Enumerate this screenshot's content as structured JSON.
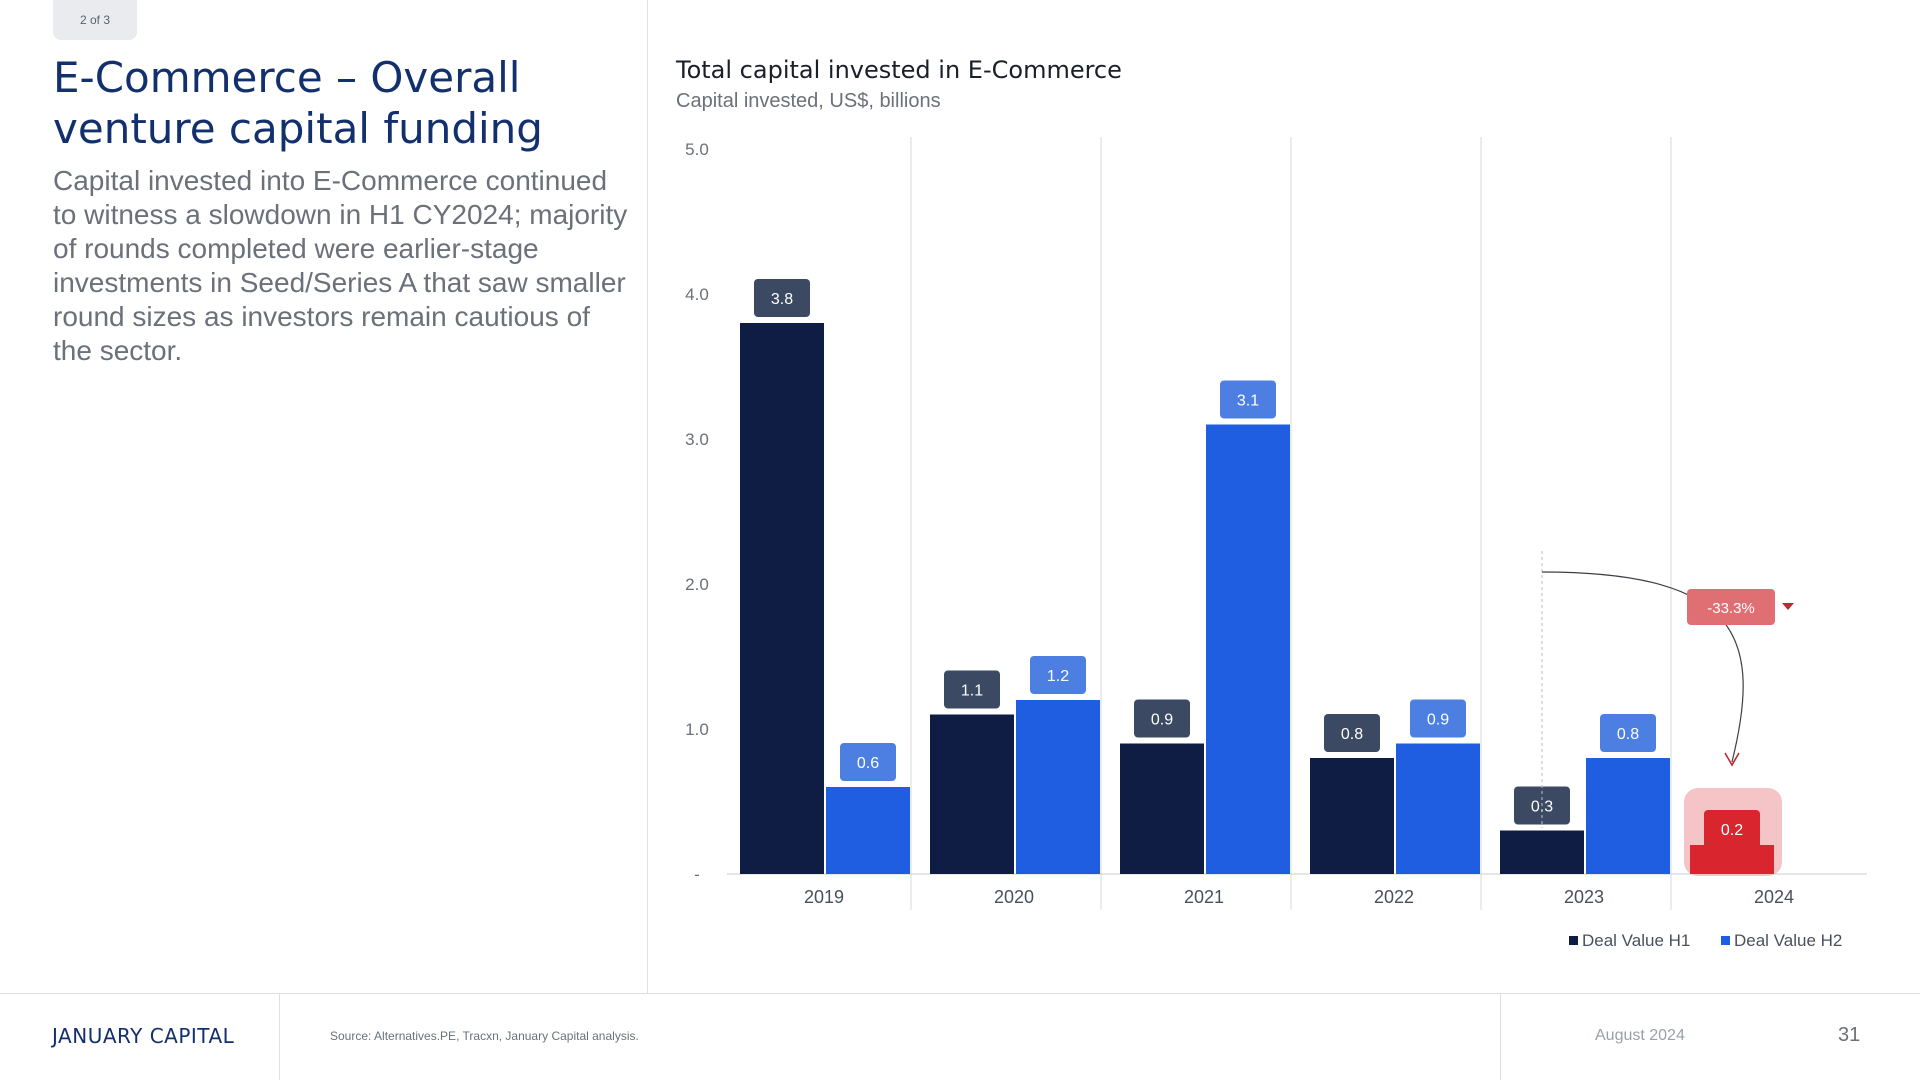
{
  "page": {
    "indicator": "2 of 3",
    "title": "E-Commerce – Overall venture capital funding",
    "body": "Capital invested into E-Commerce continued to witness a slowdown in H1 CY2024; majority of rounds completed were earlier-stage investments in Seed/Series A that saw smaller round sizes as investors remain cautious of the sector."
  },
  "footer": {
    "brand": "JANUARY CAPITAL",
    "source": "Source: Alternatives.PE, Tracxn, January Capital analysis.",
    "date": "August 2024",
    "page_number": "31"
  },
  "chart_data": {
    "type": "bar",
    "title": "Total capital invested in E-Commerce",
    "subtitle": "Capital invested, US$, billions",
    "categories": [
      "2019",
      "2020",
      "2021",
      "2022",
      "2023",
      "2024"
    ],
    "series": [
      {
        "name": "Deal Value H1",
        "values": [
          3.8,
          1.1,
          0.9,
          0.8,
          0.3,
          0.2
        ],
        "labels": [
          "3.8",
          "1.1",
          "0.9",
          "0.8",
          "0.3",
          "0.2"
        ],
        "color": "#0f1d45",
        "label_color": "#3b4a62"
      },
      {
        "name": "Deal Value H2",
        "values": [
          0.6,
          1.2,
          3.1,
          0.9,
          0.8,
          null
        ],
        "labels": [
          "0.6",
          "1.2",
          "3.1",
          "0.9",
          "0.8",
          null
        ],
        "color": "#1f5ee0",
        "label_color": "#4d7fe3"
      }
    ],
    "y_ticks": [
      "5.0",
      "4.0",
      "3.0",
      "2.0",
      "1.0",
      "-"
    ],
    "y_tick_values": [
      5,
      4,
      3,
      2,
      1,
      0
    ],
    "ylim": [
      0,
      5
    ],
    "grid": "vertical separators between categories",
    "legend_position": "bottom-right",
    "highlight": {
      "category": "2024",
      "series": "Deal Value H1",
      "value": 0.2,
      "color": "#d9262e",
      "halo_color": "#f4c4c6"
    },
    "annotation": {
      "text": "-33.3%",
      "from_category": "2023",
      "to_category": "2024",
      "series": "Deal Value H1",
      "badge_color": "#e06f74",
      "arrow_color": "#c1272d"
    }
  }
}
